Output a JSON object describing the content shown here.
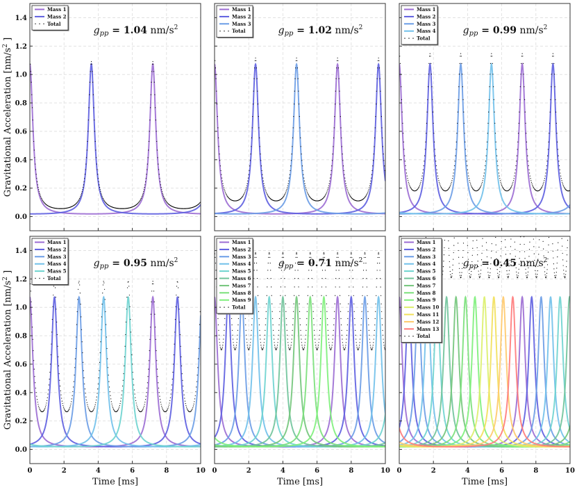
{
  "chart_data": [
    {
      "type": "line",
      "n_masses": 2,
      "annotation": {
        "symbol": "g",
        "sub": "pp",
        "eq": " = ",
        "value": "1.04",
        "unit": " nm/s",
        "sup": "2"
      },
      "legend": [
        "Mass 1",
        "Mass 2",
        "Total"
      ]
    },
    {
      "type": "line",
      "n_masses": 3,
      "annotation": {
        "symbol": "g",
        "sub": "pp",
        "eq": " = ",
        "value": "1.02",
        "unit": " nm/s",
        "sup": "2"
      },
      "legend": [
        "Mass 1",
        "Mass 2",
        "Mass 3",
        "Total"
      ]
    },
    {
      "type": "line",
      "n_masses": 4,
      "annotation": {
        "symbol": "g",
        "sub": "pp",
        "eq": " = ",
        "value": "0.99",
        "unit": " nm/s",
        "sup": "2"
      },
      "legend": [
        "Mass 1",
        "Mass 2",
        "Mass 3",
        "Mass 4",
        "Total"
      ]
    },
    {
      "type": "line",
      "n_masses": 5,
      "annotation": {
        "symbol": "g",
        "sub": "pp",
        "eq": " = ",
        "value": "0.95",
        "unit": " nm/s",
        "sup": "2"
      },
      "legend": [
        "Mass 1",
        "Mass 2",
        "Mass 3",
        "Mass 4",
        "Mass 5",
        "Total"
      ]
    },
    {
      "type": "line",
      "n_masses": 9,
      "annotation": {
        "symbol": "g",
        "sub": "pp",
        "eq": " = ",
        "value": "0.71",
        "unit": " nm/s",
        "sup": "2"
      },
      "legend": [
        "Mass 1",
        "Mass 2",
        "Mass 3",
        "Mass 4",
        "Mass 5",
        "Mass 6",
        "Mass 7",
        "Mass 8",
        "Mass 9",
        "Total"
      ]
    },
    {
      "type": "line",
      "n_masses": 13,
      "annotation": {
        "symbol": "g",
        "sub": "pp",
        "eq": " = ",
        "value": "0.45",
        "unit": " nm/s",
        "sup": "2"
      },
      "legend": [
        "Mass 1",
        "Mass 2",
        "Mass 3",
        "Mass 4",
        "Mass 5",
        "Mass 6",
        "Mass 7",
        "Mass 8",
        "Mass 9",
        "Mass 10",
        "Mass 11",
        "Mass 12",
        "Mass 13",
        "Total"
      ]
    }
  ],
  "shared": {
    "xlabel": "Time [ms]",
    "ylabel": "Gravitational Acceleration [nm/s",
    "ylabel_sup": "2",
    "ylabel_end": " ]",
    "xlim": [
      0,
      10
    ],
    "ylim": [
      -0.1,
      1.5
    ],
    "xticks": [
      "0",
      "2",
      "4",
      "6",
      "8",
      "10"
    ],
    "yticks": [
      "0.0",
      "0.2",
      "0.4",
      "0.6",
      "0.8",
      "1.0",
      "1.2",
      "1.4"
    ],
    "grid": true,
    "legend_placement": "top-left",
    "peak_value": 1.07,
    "baseline_value": 0.01,
    "rotation_period_ms": 7.2,
    "mass_colors": [
      "#9b6bd3",
      "#5d5ee0",
      "#6a9ce6",
      "#70c0ea",
      "#6dd3cf",
      "#6fc39a",
      "#72c57a",
      "#7ae07a",
      "#7df07a",
      "#dcef6a",
      "#f2e05a",
      "#ffc96a",
      "#ff7a7a"
    ],
    "total_color": "#000000"
  }
}
